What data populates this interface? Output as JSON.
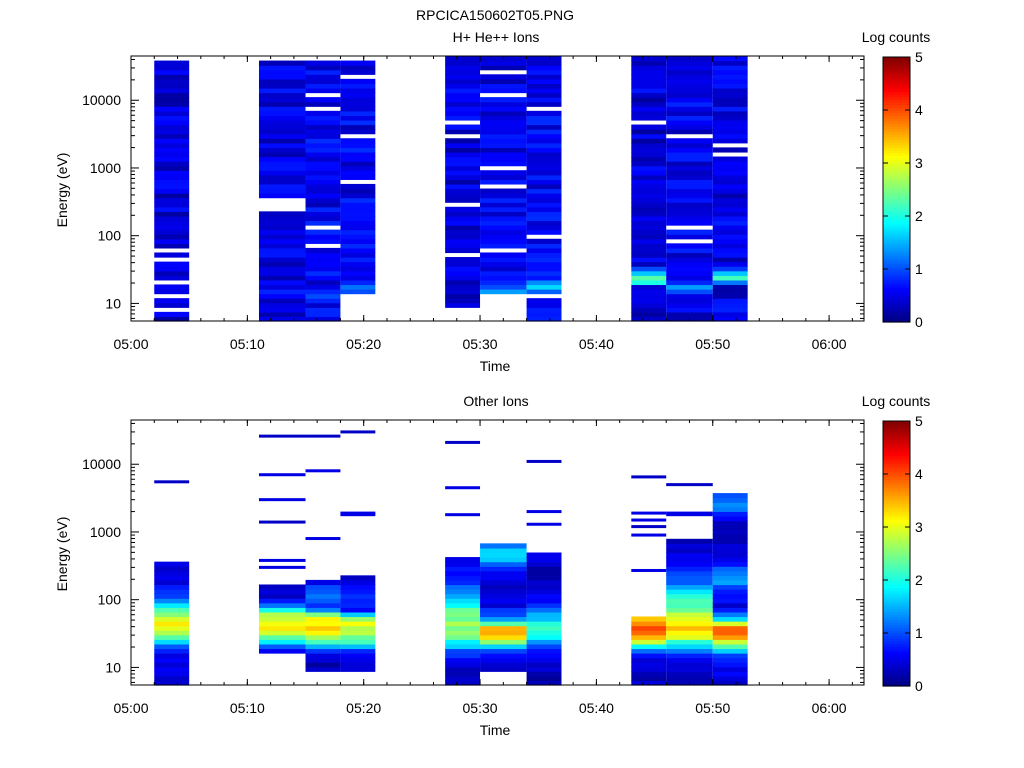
{
  "figure_title": "RPCICA150602T05.PNG",
  "colorbar": {
    "label": "Log counts",
    "ticks": [
      "0",
      "1",
      "2",
      "3",
      "4",
      "5"
    ],
    "range": [
      0,
      5
    ],
    "colormap": "jet"
  },
  "chart_data": [
    {
      "type": "heatmap",
      "title": "H+ He++ Ions",
      "xlabel": "Time",
      "ylabel": "Energy (eV)",
      "x_ticks": [
        "05:00",
        "05:10",
        "05:20",
        "05:30",
        "05:40",
        "05:50",
        "06:00"
      ],
      "y_ticks": [
        "10",
        "100",
        "1000",
        "10000"
      ],
      "y_scale": "log",
      "y_range_eV": [
        5.5,
        45000
      ],
      "x_range": [
        "05:00",
        "06:03"
      ],
      "color_range": [
        0,
        5
      ],
      "columns": [
        {
          "start": "05:02",
          "end": "05:05",
          "top_eV": 38000,
          "bottom_eV": 5.5,
          "gaps_eV": [
            8,
            12,
            22,
            47,
            62
          ],
          "base": 0.45,
          "low": [],
          "low_eV": 5.5
        },
        {
          "start": "05:11",
          "end": "05:15",
          "top_eV": 38000,
          "bottom_eV": 5.5,
          "gaps_eV": [
            230,
            280,
            360
          ],
          "base": 0.5,
          "low": [],
          "low_eV": 5.5
        },
        {
          "start": "05:15",
          "end": "05:18",
          "top_eV": 40000,
          "bottom_eV": 5.5,
          "gaps_eV": [
            75,
            140,
            8000,
            12000
          ],
          "base": 0.55,
          "low": [
            1.0,
            0.8,
            0.5,
            0.3
          ],
          "low_eV": 12
        },
        {
          "start": "05:18",
          "end": "05:21",
          "top_eV": 38000,
          "bottom_eV": 15,
          "gaps_eV": [
            600,
            3000,
            22000
          ],
          "base": 0.55,
          "low": [
            1.0,
            1.2,
            0.8,
            0.5
          ],
          "low_eV": 15
        },
        {
          "start": "05:27",
          "end": "05:30",
          "top_eV": 44000,
          "bottom_eV": 9,
          "gaps_eV": [
            50,
            300,
            3000,
            4500
          ],
          "base": 0.45,
          "low": [
            0.5,
            0.3,
            0.2
          ],
          "low_eV": 9
        },
        {
          "start": "05:30",
          "end": "05:34",
          "top_eV": 44000,
          "bottom_eV": 15,
          "gaps_eV": [
            60,
            500,
            1000,
            12000,
            25000
          ],
          "base": 0.5,
          "low": [
            1.4,
            1.0,
            0.8
          ],
          "low_eV": 15
        },
        {
          "start": "05:34",
          "end": "05:37",
          "top_eV": 44000,
          "bottom_eV": 5.5,
          "gaps_eV": [
            12,
            100,
            8000
          ],
          "base": 0.55,
          "low": [
            1.1,
            1.7,
            1.3
          ],
          "low_eV": 15
        },
        {
          "start": "05:43",
          "end": "05:46",
          "top_eV": 44000,
          "bottom_eV": 5.5,
          "gaps_eV": [
            5000
          ],
          "base": 0.45,
          "low": [
            2.0,
            2.3,
            1.6,
            1.0
          ],
          "low_eV": 20
        },
        {
          "start": "05:46",
          "end": "05:50",
          "top_eV": 44000,
          "bottom_eV": 5.5,
          "gaps_eV": [
            80,
            130,
            3000
          ],
          "base": 0.5,
          "low": [
            1.0,
            1.4,
            0.8
          ],
          "low_eV": 15
        },
        {
          "start": "05:50",
          "end": "05:53",
          "top_eV": 44000,
          "bottom_eV": 5.5,
          "gaps_eV": [
            1600,
            2300
          ],
          "base": 0.5,
          "low": [
            1.2,
            2.2,
            1.6,
            0.9
          ],
          "low_eV": 20
        }
      ]
    },
    {
      "type": "heatmap",
      "title": "Other Ions",
      "xlabel": "Time",
      "ylabel": "Energy (eV)",
      "x_ticks": [
        "05:00",
        "05:10",
        "05:20",
        "05:30",
        "05:40",
        "05:50",
        "06:00"
      ],
      "y_ticks": [
        "10",
        "100",
        "1000",
        "10000"
      ],
      "y_scale": "log",
      "y_range_eV": [
        5.5,
        45000
      ],
      "x_range": [
        "05:00",
        "06:03"
      ],
      "color_range": [
        0,
        5
      ],
      "columns": [
        {
          "start": "05:02",
          "end": "05:05",
          "top_eV": 350,
          "bottom_eV": 5.5,
          "lines_eV": [
            5500
          ],
          "profile": [
            [
              350,
              0.4
            ],
            [
              150,
              0.6
            ],
            [
              90,
              1.4
            ],
            [
              70,
              2.2
            ],
            [
              55,
              3.0
            ],
            [
              40,
              3.1
            ],
            [
              32,
              2.6
            ],
            [
              27,
              2.0
            ],
            [
              22,
              1.3
            ],
            [
              18,
              0.7
            ],
            [
              5.5,
              0.3
            ]
          ]
        },
        {
          "start": "05:11",
          "end": "05:15",
          "top_eV": 170,
          "bottom_eV": 16,
          "lines_eV": [
            26000,
            7000,
            3000,
            1400,
            380,
            300
          ],
          "profile": [
            [
              170,
              0.3
            ],
            [
              90,
              0.6
            ],
            [
              60,
              2.9
            ],
            [
              40,
              3.2
            ],
            [
              32,
              2.8
            ],
            [
              26,
              2.2
            ],
            [
              22,
              1.6
            ],
            [
              19,
              0.8
            ],
            [
              16,
              0.4
            ]
          ]
        },
        {
          "start": "05:15",
          "end": "05:18",
          "top_eV": 200,
          "bottom_eV": 8.5,
          "lines_eV": [
            26000,
            8000,
            800
          ],
          "profile": [
            [
              200,
              0.3
            ],
            [
              120,
              1.4
            ],
            [
              75,
              0.7
            ],
            [
              55,
              3.2
            ],
            [
              40,
              3.3
            ],
            [
              30,
              2.9
            ],
            [
              24,
              2.3
            ],
            [
              20,
              1.5
            ],
            [
              17,
              0.7
            ],
            [
              12,
              0.3
            ],
            [
              8.5,
              0.3
            ]
          ]
        },
        {
          "start": "05:18",
          "end": "05:21",
          "top_eV": 220,
          "bottom_eV": 9,
          "lines_eV": [
            30000,
            1900,
            1800
          ],
          "profile": [
            [
              220,
              0.3
            ],
            [
              110,
              0.9
            ],
            [
              70,
              0.5
            ],
            [
              50,
              3.0
            ],
            [
              38,
              2.9
            ],
            [
              30,
              2.6
            ],
            [
              24,
              2.1
            ],
            [
              20,
              1.3
            ],
            [
              16,
              0.5
            ],
            [
              9,
              0.3
            ]
          ]
        },
        {
          "start": "05:27",
          "end": "05:30",
          "top_eV": 450,
          "bottom_eV": 5.5,
          "lines_eV": [
            21000,
            4500,
            1800
          ],
          "profile": [
            [
              450,
              0.4
            ],
            [
              200,
              0.8
            ],
            [
              120,
              1.2
            ],
            [
              70,
              2.3
            ],
            [
              45,
              2.6
            ],
            [
              30,
              2.4
            ],
            [
              22,
              1.8
            ],
            [
              18,
              1.0
            ],
            [
              12,
              0.4
            ],
            [
              5.5,
              0.3
            ]
          ]
        },
        {
          "start": "05:30",
          "end": "05:34",
          "top_eV": 700,
          "bottom_eV": 9,
          "lines_eV": [],
          "profile": [
            [
              700,
              1.2
            ],
            [
              450,
              1.8
            ],
            [
              300,
              0.8
            ],
            [
              150,
              0.4
            ],
            [
              80,
              0.5
            ],
            [
              50,
              1.6
            ],
            [
              38,
              3.5
            ],
            [
              30,
              3.4
            ],
            [
              24,
              2.5
            ],
            [
              19,
              1.3
            ],
            [
              14,
              0.4
            ],
            [
              9,
              0.3
            ]
          ]
        },
        {
          "start": "05:34",
          "end": "05:37",
          "top_eV": 500,
          "bottom_eV": 5.5,
          "lines_eV": [
            11000,
            2000,
            1300
          ],
          "profile": [
            [
              500,
              0.4
            ],
            [
              250,
              0.3
            ],
            [
              140,
              0.5
            ],
            [
              80,
              0.9
            ],
            [
              55,
              1.6
            ],
            [
              40,
              2.2
            ],
            [
              30,
              1.9
            ],
            [
              22,
              1.2
            ],
            [
              16,
              0.6
            ],
            [
              5.5,
              0.2
            ]
          ]
        },
        {
          "start": "05:43",
          "end": "05:46",
          "top_eV": 60,
          "bottom_eV": 5.5,
          "lines_eV": [
            6500,
            1900,
            1500,
            1200,
            900,
            270
          ],
          "profile": [
            [
              60,
              3.1
            ],
            [
              45,
              3.7
            ],
            [
              35,
              4.0
            ],
            [
              28,
              3.6
            ],
            [
              22,
              2.4
            ],
            [
              18,
              1.3
            ],
            [
              14,
              0.5
            ],
            [
              5.5,
              0.3
            ]
          ]
        },
        {
          "start": "05:46",
          "end": "05:50",
          "top_eV": 800,
          "bottom_eV": 5.5,
          "lines_eV": [
            5000,
            1900,
            1800
          ],
          "profile": [
            [
              800,
              0.3
            ],
            [
              300,
              0.6
            ],
            [
              170,
              1.2
            ],
            [
              110,
              2.1
            ],
            [
              70,
              2.5
            ],
            [
              50,
              3.1
            ],
            [
              40,
              3.5
            ],
            [
              30,
              3.2
            ],
            [
              24,
              2.2
            ],
            [
              18,
              1.3
            ],
            [
              13,
              0.6
            ],
            [
              5.5,
              0.3
            ]
          ]
        },
        {
          "start": "05:50",
          "end": "05:53",
          "top_eV": 3800,
          "bottom_eV": 5.5,
          "lines_eV": [],
          "profile": [
            [
              3800,
              0.8
            ],
            [
              2500,
              1.3
            ],
            [
              1500,
              0.4
            ],
            [
              500,
              0.3
            ],
            [
              200,
              1.5
            ],
            [
              130,
              0.7
            ],
            [
              80,
              0.5
            ],
            [
              55,
              1.5
            ],
            [
              40,
              3.8
            ],
            [
              30,
              3.9
            ],
            [
              24,
              3.0
            ],
            [
              19,
              1.8
            ],
            [
              14,
              0.8
            ],
            [
              5.5,
              0.3
            ]
          ]
        }
      ]
    }
  ]
}
